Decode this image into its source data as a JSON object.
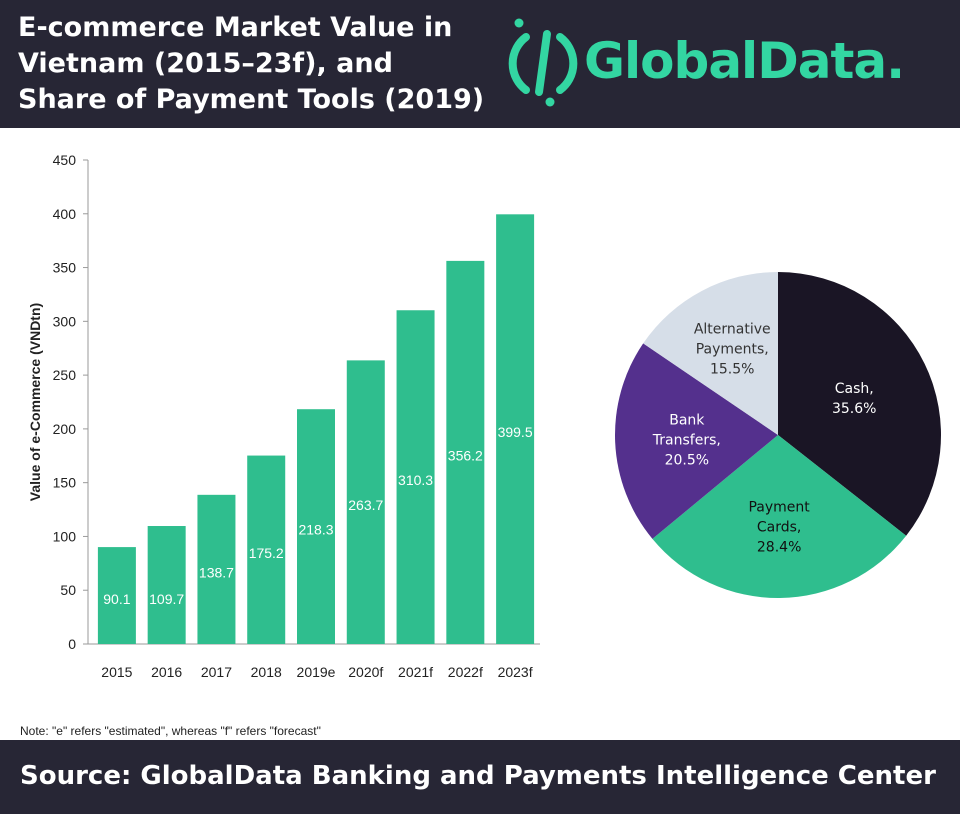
{
  "header": {
    "title_lines": [
      "E-commerce Market Value in",
      "Vietnam (2015–23f), and",
      "Share of Payment Tools (2019)"
    ],
    "brand": "GlobalData."
  },
  "colors": {
    "header_bg": "#272635",
    "brand": "#33d6a2",
    "bar": "#2fbe8e",
    "cash": "#1a1525",
    "payment_cards": "#2fbe8e",
    "bank_transfers": "#54308d",
    "alternative_payments": "#d6dee8"
  },
  "chart_data": [
    {
      "type": "bar",
      "categories": [
        "2015",
        "2016",
        "2017",
        "2018",
        "2019e",
        "2020f",
        "2021f",
        "2022f",
        "2023f"
      ],
      "values": [
        90.1,
        109.7,
        138.7,
        175.2,
        218.3,
        263.7,
        310.3,
        356.2,
        399.5
      ],
      "data_labels": [
        "90.1",
        "109.7",
        "138.7",
        "175.2",
        "218.3",
        "263.7",
        "310.3",
        "356.2",
        "399.5"
      ],
      "ylabel": "Value of e-Commerce (VNDtn)",
      "ylim": [
        0,
        450
      ],
      "yticks": [
        0,
        50,
        100,
        150,
        200,
        250,
        300,
        350,
        400,
        450
      ],
      "grid": false
    },
    {
      "type": "pie",
      "slices": [
        {
          "label": "Cash,",
          "pct_label": "35.6%",
          "value": 35.6
        },
        {
          "label": "Payment Cards,",
          "pct_label": "28.4%",
          "value": 28.4
        },
        {
          "label": "Bank Transfers,",
          "pct_label": "20.5%",
          "value": 20.5
        },
        {
          "label": "Alternative Payments,",
          "pct_label": "15.5%",
          "value": 15.5
        }
      ]
    }
  ],
  "note": "Note: \"e\" refers \"estimated\", whereas \"f\" refers \"forecast\"",
  "footer": {
    "source": "Source: GlobalData Banking and Payments Intelligence Center"
  }
}
